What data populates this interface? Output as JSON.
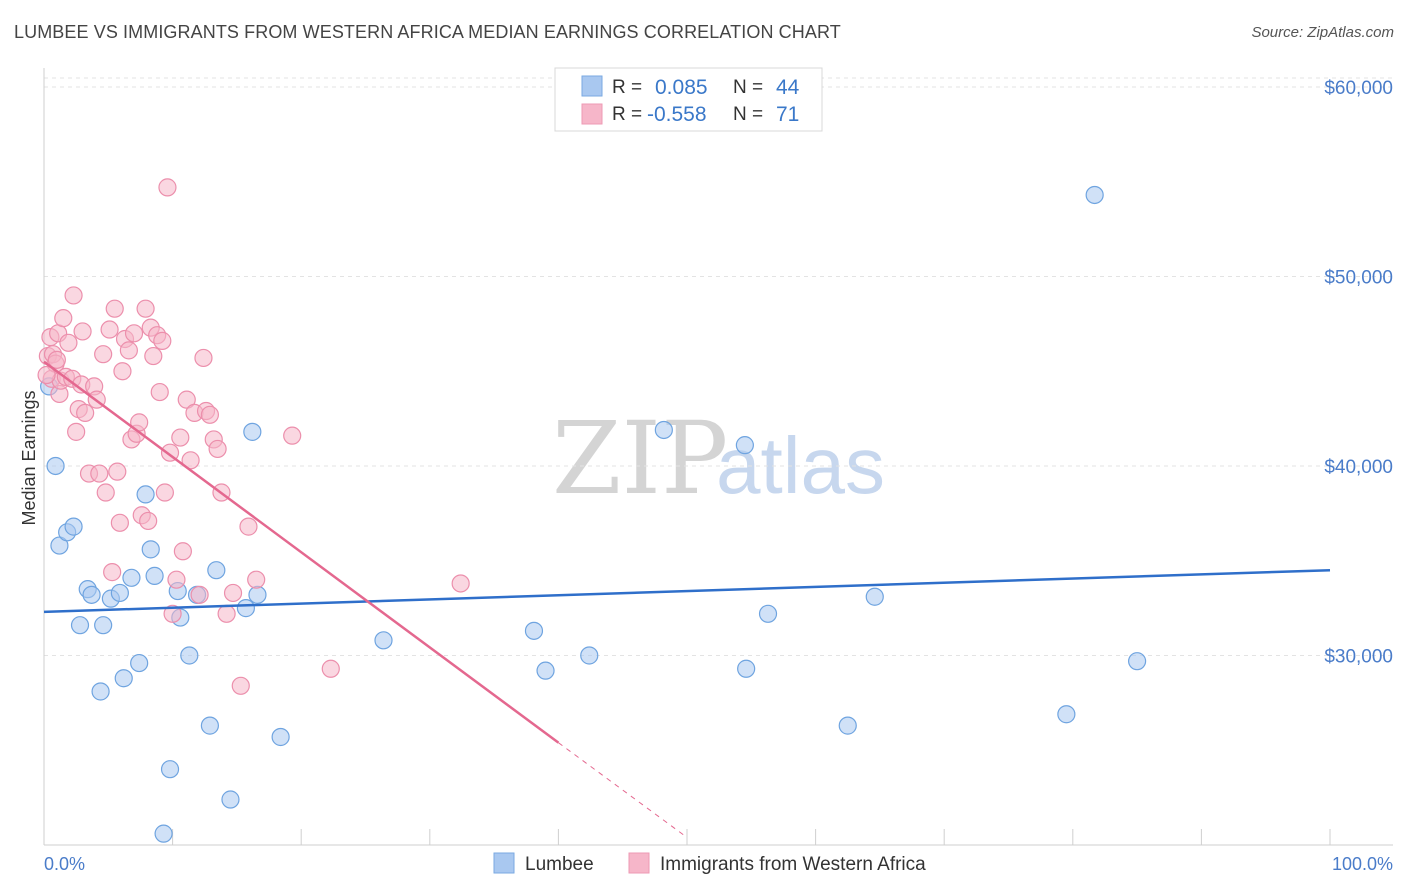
{
  "title": "LUMBEE VS IMMIGRANTS FROM WESTERN AFRICA MEDIAN EARNINGS CORRELATION CHART",
  "source": "Source: ZipAtlas.com",
  "watermark": {
    "zip": "ZIP",
    "atlas": "atlas"
  },
  "legend": {
    "rows": [
      {
        "r_label": "R =",
        "r_value": "0.085",
        "n_label": "N =",
        "n_value": "44",
        "color": "#a9c8f0"
      },
      {
        "r_label": "R =",
        "r_value": "-0.558",
        "n_label": "N =",
        "n_value": "71",
        "color": "#f6b6c9"
      }
    ]
  },
  "bottom_legend": [
    "Lumbee",
    "Immigrants from Western Africa"
  ],
  "chart_data": {
    "type": "scatter",
    "title": "LUMBEE VS IMMIGRANTS FROM WESTERN AFRICA MEDIAN EARNINGS CORRELATION CHART",
    "xlabel": "",
    "ylabel": "Median Earnings",
    "xlim": [
      0,
      100
    ],
    "ylim": [
      20000,
      61000
    ],
    "x_tick_labels": [
      "0.0%",
      "100.0%"
    ],
    "y_ticks": [
      30000,
      40000,
      50000,
      60000
    ],
    "y_tick_labels": [
      "$30,000",
      "$40,000",
      "$50,000",
      "$60,000"
    ],
    "series": [
      {
        "name": "Lumbee",
        "color": "#6fa4e0",
        "fill": "#a9c8f0",
        "line_color": "#2f6fca",
        "trend": {
          "x0": 0,
          "y0": 32300,
          "x1": 100,
          "y1": 34500
        },
        "points": [
          [
            0.4,
            44200
          ],
          [
            0.9,
            40000
          ],
          [
            1.2,
            35800
          ],
          [
            1.8,
            36500
          ],
          [
            2.3,
            36800
          ],
          [
            2.8,
            31600
          ],
          [
            3.4,
            33500
          ],
          [
            3.7,
            33200
          ],
          [
            4.6,
            31600
          ],
          [
            4.4,
            28100
          ],
          [
            5.2,
            33000
          ],
          [
            5.9,
            33300
          ],
          [
            6.2,
            28800
          ],
          [
            6.8,
            34100
          ],
          [
            7.4,
            29600
          ],
          [
            7.9,
            38500
          ],
          [
            8.3,
            35600
          ],
          [
            8.6,
            34200
          ],
          [
            9.3,
            20600
          ],
          [
            9.8,
            24000
          ],
          [
            10.4,
            33400
          ],
          [
            10.6,
            32000
          ],
          [
            11.3,
            30000
          ],
          [
            11.9,
            33200
          ],
          [
            12.9,
            26300
          ],
          [
            13.4,
            34500
          ],
          [
            14.5,
            22400
          ],
          [
            15.7,
            32500
          ],
          [
            16.2,
            41800
          ],
          [
            16.6,
            33200
          ],
          [
            18.4,
            25700
          ],
          [
            26.4,
            30800
          ],
          [
            38.1,
            31300
          ],
          [
            39.0,
            29200
          ],
          [
            42.4,
            30000
          ],
          [
            48.2,
            41900
          ],
          [
            54.5,
            41100
          ],
          [
            54.6,
            29300
          ],
          [
            56.3,
            32200
          ],
          [
            62.5,
            26300
          ],
          [
            64.6,
            33100
          ],
          [
            79.5,
            26900
          ],
          [
            81.7,
            54300
          ],
          [
            85.0,
            29700
          ]
        ]
      },
      {
        "name": "Immigrants from Western Africa",
        "color": "#ec8fac",
        "fill": "#f6b6c9",
        "line_color": "#e4688f",
        "trend": {
          "x0": 0,
          "y0": 45500,
          "x1": 40.0,
          "y1": 25400
        },
        "trend_dashed": {
          "x0": 40.0,
          "y0": 25400,
          "x1": 50.0,
          "y1": 20400
        },
        "points": [
          [
            0.3,
            45800
          ],
          [
            0.5,
            46800
          ],
          [
            0.6,
            44600
          ],
          [
            0.7,
            45900
          ],
          [
            0.9,
            45400
          ],
          [
            1.0,
            45600
          ],
          [
            1.1,
            47000
          ],
          [
            1.2,
            43800
          ],
          [
            1.3,
            44500
          ],
          [
            1.5,
            47800
          ],
          [
            1.7,
            44700
          ],
          [
            1.9,
            46500
          ],
          [
            2.2,
            44600
          ],
          [
            2.3,
            49000
          ],
          [
            2.5,
            41800
          ],
          [
            2.7,
            43000
          ],
          [
            2.9,
            44300
          ],
          [
            3.0,
            47100
          ],
          [
            3.2,
            42800
          ],
          [
            3.5,
            39600
          ],
          [
            3.9,
            44200
          ],
          [
            4.1,
            43500
          ],
          [
            4.3,
            39600
          ],
          [
            4.6,
            45900
          ],
          [
            4.8,
            38600
          ],
          [
            5.1,
            47200
          ],
          [
            5.3,
            34400
          ],
          [
            5.5,
            48300
          ],
          [
            5.7,
            39700
          ],
          [
            5.9,
            37000
          ],
          [
            6.1,
            45000
          ],
          [
            6.3,
            46700
          ],
          [
            6.6,
            46100
          ],
          [
            6.8,
            41400
          ],
          [
            7.0,
            47000
          ],
          [
            7.2,
            41700
          ],
          [
            7.4,
            42300
          ],
          [
            7.6,
            37400
          ],
          [
            7.9,
            48300
          ],
          [
            8.1,
            37100
          ],
          [
            8.3,
            47300
          ],
          [
            8.5,
            45800
          ],
          [
            8.8,
            46900
          ],
          [
            9.0,
            43900
          ],
          [
            9.2,
            46600
          ],
          [
            9.4,
            38600
          ],
          [
            9.6,
            54700
          ],
          [
            9.8,
            40700
          ],
          [
            10.0,
            32200
          ],
          [
            10.3,
            34000
          ],
          [
            10.6,
            41500
          ],
          [
            10.8,
            35500
          ],
          [
            11.1,
            43500
          ],
          [
            11.4,
            40300
          ],
          [
            11.7,
            42800
          ],
          [
            12.1,
            33200
          ],
          [
            12.4,
            45700
          ],
          [
            12.6,
            42900
          ],
          [
            12.9,
            42700
          ],
          [
            13.2,
            41400
          ],
          [
            13.5,
            40900
          ],
          [
            13.8,
            38600
          ],
          [
            14.2,
            32200
          ],
          [
            14.7,
            33300
          ],
          [
            15.3,
            28400
          ],
          [
            15.9,
            36800
          ],
          [
            16.5,
            34000
          ],
          [
            19.3,
            41600
          ],
          [
            22.3,
            29300
          ],
          [
            32.4,
            33800
          ],
          [
            0.2,
            44800
          ]
        ]
      }
    ]
  }
}
